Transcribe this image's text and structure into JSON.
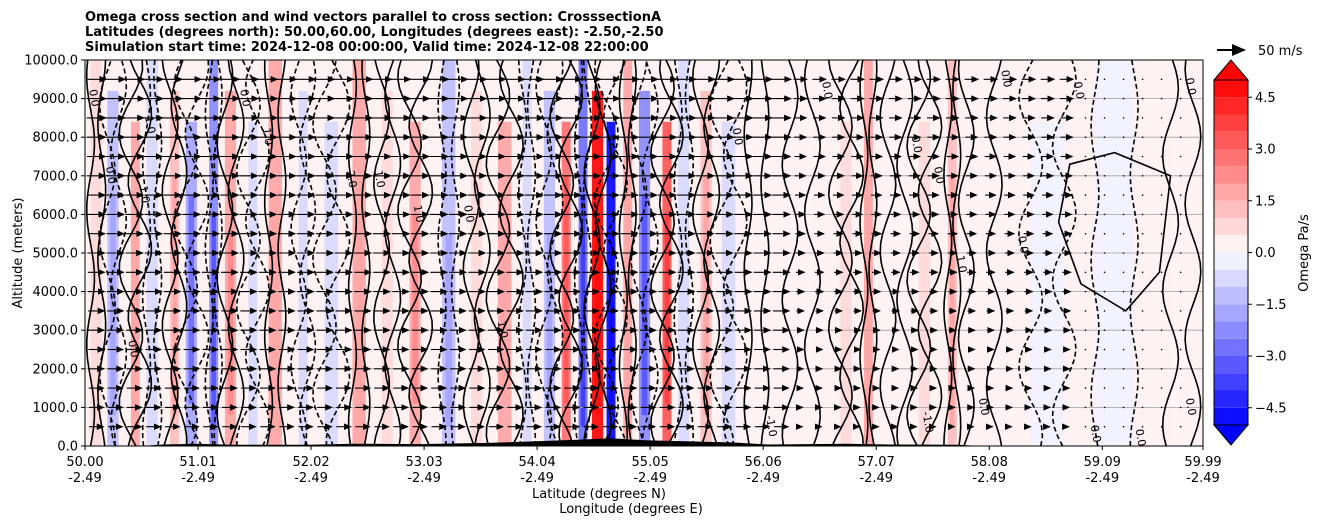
{
  "chart_data": {
    "type": "contour",
    "title_lines": [
      "Omega cross section and wind vectors parallel to cross section: CrosssectionA",
      "Latitudes (degrees north): 50.00,60.00, Longitudes (degrees east): -2.50,-2.50",
      "Simulation start time: 2024-12-08 00:00:00, Valid time: 2024-12-08 22:00:00"
    ],
    "ylabel": "Altitude (meters)",
    "xlabel_lat": "Latitude (degrees N)",
    "xlabel_lon": "Longitude (degrees E)",
    "x_range": [
      50.0,
      59.99
    ],
    "y_range": [
      0,
      10000
    ],
    "y_ticks": [
      "0.0",
      "1000.0",
      "2000.0",
      "3000.0",
      "4000.0",
      "5000.0",
      "6000.0",
      "7000.0",
      "8000.0",
      "9000.0",
      "10000.0"
    ],
    "y_tick_values": [
      0,
      1000,
      2000,
      3000,
      4000,
      5000,
      6000,
      7000,
      8000,
      9000,
      10000
    ],
    "x_ticks": [
      {
        "value": 50.0,
        "lat": "50.00",
        "lon": "-2.49"
      },
      {
        "value": 51.01,
        "lat": "51.01",
        "lon": "-2.49"
      },
      {
        "value": 52.02,
        "lat": "52.02",
        "lon": "-2.49"
      },
      {
        "value": 53.03,
        "lat": "53.03",
        "lon": "-2.49"
      },
      {
        "value": 54.04,
        "lat": "54.04",
        "lon": "-2.49"
      },
      {
        "value": 55.05,
        "lat": "55.05",
        "lon": "-2.49"
      },
      {
        "value": 56.06,
        "lat": "56.06",
        "lon": "-2.49"
      },
      {
        "value": 57.07,
        "lat": "57.07",
        "lon": "-2.49"
      },
      {
        "value": 58.08,
        "lat": "58.08",
        "lon": "-2.49"
      },
      {
        "value": 59.09,
        "lat": "59.09",
        "lon": "-2.49"
      },
      {
        "value": 59.99,
        "lat": "59.99",
        "lon": "-2.49"
      }
    ],
    "grid": "horizontal",
    "colorbar": {
      "label": "Omega Pa/s",
      "min": -5.0,
      "max": 5.0,
      "ticks": [
        "4.5",
        "3.0",
        "1.5",
        "0.0",
        "−1.5",
        "−3.0",
        "−4.5"
      ],
      "tick_values": [
        4.5,
        3.0,
        1.5,
        0.0,
        -1.5,
        -3.0,
        -4.5
      ],
      "cmap": "bwr",
      "extend": "both"
    },
    "vector_key": {
      "label": "50 m/s",
      "speed": 50
    },
    "omega_bands": [
      {
        "lat": 50.1,
        "width": 0.1,
        "value": 0.8
      },
      {
        "lat": 50.25,
        "width": 0.1,
        "value": -1.2
      },
      {
        "lat": 50.45,
        "width": 0.08,
        "value": 1.5
      },
      {
        "lat": 50.6,
        "width": 0.1,
        "value": -0.8
      },
      {
        "lat": 50.8,
        "width": 0.08,
        "value": 1.2
      },
      {
        "lat": 50.95,
        "width": 0.1,
        "value": -2.0
      },
      {
        "lat": 51.15,
        "width": 0.08,
        "value": -2.5
      },
      {
        "lat": 51.3,
        "width": 0.1,
        "value": 1.8
      },
      {
        "lat": 51.5,
        "width": 0.08,
        "value": -1.0
      },
      {
        "lat": 51.7,
        "width": 0.12,
        "value": 1.5
      },
      {
        "lat": 51.95,
        "width": 0.08,
        "value": -0.8
      },
      {
        "lat": 52.2,
        "width": 0.12,
        "value": -0.6
      },
      {
        "lat": 52.45,
        "width": 0.12,
        "value": 1.5
      },
      {
        "lat": 52.7,
        "width": 0.1,
        "value": 0.8
      },
      {
        "lat": 52.95,
        "width": 0.1,
        "value": 1.8
      },
      {
        "lat": 53.25,
        "width": 0.12,
        "value": -1.2
      },
      {
        "lat": 53.5,
        "width": 0.1,
        "value": 0.5
      },
      {
        "lat": 53.75,
        "width": 0.12,
        "value": 1.5
      },
      {
        "lat": 53.95,
        "width": 0.08,
        "value": -0.8
      },
      {
        "lat": 54.15,
        "width": 0.1,
        "value": -1.5
      },
      {
        "lat": 54.3,
        "width": 0.08,
        "value": 2.5
      },
      {
        "lat": 54.45,
        "width": 0.08,
        "value": -3.0
      },
      {
        "lat": 54.58,
        "width": 0.1,
        "value": 4.8
      },
      {
        "lat": 54.7,
        "width": 0.08,
        "value": -5.0
      },
      {
        "lat": 54.85,
        "width": 0.08,
        "value": 1.5
      },
      {
        "lat": 55.0,
        "width": 0.1,
        "value": -2.5
      },
      {
        "lat": 55.2,
        "width": 0.08,
        "value": 3.0
      },
      {
        "lat": 55.35,
        "width": 0.1,
        "value": -1.0
      },
      {
        "lat": 55.55,
        "width": 0.1,
        "value": 1.2
      },
      {
        "lat": 55.75,
        "width": 0.12,
        "value": -0.8
      },
      {
        "lat": 56.0,
        "width": 0.15,
        "value": 0.4
      },
      {
        "lat": 56.4,
        "width": 0.2,
        "value": 0.3
      },
      {
        "lat": 56.8,
        "width": 0.1,
        "value": 0.6
      },
      {
        "lat": 57.0,
        "width": 0.08,
        "value": 1.5
      },
      {
        "lat": 57.25,
        "width": 0.15,
        "value": 0.4
      },
      {
        "lat": 57.5,
        "width": 0.1,
        "value": 0.8
      },
      {
        "lat": 57.75,
        "width": 0.08,
        "value": 1.2
      },
      {
        "lat": 58.0,
        "width": 0.25,
        "value": 0.2
      },
      {
        "lat": 58.6,
        "width": 0.3,
        "value": -0.3
      },
      {
        "lat": 59.2,
        "width": 0.35,
        "value": -0.2
      },
      {
        "lat": 59.8,
        "width": 0.2,
        "value": 0.3
      }
    ],
    "contour_labels": [
      {
        "lat": 50.05,
        "alt": 9000,
        "text": "0.0"
      },
      {
        "lat": 50.55,
        "alt": 8300,
        "text": "1.0"
      },
      {
        "lat": 50.2,
        "alt": 7000,
        "text": "0.0"
      },
      {
        "lat": 50.5,
        "alt": 6500,
        "text": "1.0"
      },
      {
        "lat": 50.4,
        "alt": 2500,
        "text": "0.0"
      },
      {
        "lat": 51.4,
        "alt": 9000,
        "text": "0.0"
      },
      {
        "lat": 51.6,
        "alt": 8000,
        "text": "1.0"
      },
      {
        "lat": 52.35,
        "alt": 6900,
        "text": "2.0"
      },
      {
        "lat": 52.6,
        "alt": 6900,
        "text": "1.0"
      },
      {
        "lat": 52.95,
        "alt": 6000,
        "text": "1.0"
      },
      {
        "lat": 53.4,
        "alt": 6000,
        "text": "0.0"
      },
      {
        "lat": 53.7,
        "alt": 3000,
        "text": "1.0"
      },
      {
        "lat": 55.8,
        "alt": 8000,
        "text": "0.0"
      },
      {
        "lat": 56.6,
        "alt": 9200,
        "text": "0.0"
      },
      {
        "lat": 57.4,
        "alt": 7800,
        "text": "0.0"
      },
      {
        "lat": 57.6,
        "alt": 7000,
        "text": "0.0"
      },
      {
        "lat": 57.8,
        "alt": 4700,
        "text": "1.0"
      },
      {
        "lat": 58.2,
        "alt": 9500,
        "text": "0.0"
      },
      {
        "lat": 58.85,
        "alt": 9200,
        "text": "0.0"
      },
      {
        "lat": 58.35,
        "alt": 5200,
        "text": "0.0"
      },
      {
        "lat": 59.85,
        "alt": 9300,
        "text": "0.0"
      },
      {
        "lat": 59.0,
        "alt": 300,
        "text": "0.0"
      },
      {
        "lat": 59.4,
        "alt": 200,
        "text": "0.0"
      },
      {
        "lat": 59.85,
        "alt": 1000,
        "text": "0.0"
      },
      {
        "lat": 56.1,
        "alt": 500,
        "text": "-1.0"
      },
      {
        "lat": 57.5,
        "alt": 600,
        "text": "-1.0"
      },
      {
        "lat": 58.0,
        "alt": 1000,
        "text": "0.0"
      }
    ]
  }
}
